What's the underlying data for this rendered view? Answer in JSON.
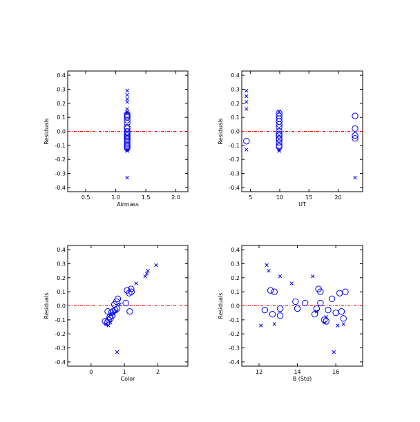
{
  "colors": {
    "marker": "#0000ff",
    "zero_line": "#ff0000",
    "axis": "#000000"
  },
  "chart_data": [
    {
      "type": "scatter",
      "xlabel": "Airmass",
      "ylabel": "Residuals",
      "xlim": [
        0.2,
        2.2
      ],
      "ylim": [
        -0.43,
        0.43
      ],
      "xticks": [
        0.5,
        1.0,
        1.5,
        2.0
      ],
      "xtick_labels": [
        "0.5",
        "1.0",
        "1.5",
        "2.0"
      ],
      "yticks": [
        -0.4,
        -0.3,
        -0.2,
        -0.1,
        0.0,
        0.1,
        0.2,
        0.3,
        0.4
      ],
      "ytick_labels": [
        "-0.4",
        "-0.3",
        "-0.2",
        "-0.1",
        "0.0",
        "0.1",
        "0.2",
        "0.3",
        "0.4"
      ],
      "zero_line": true,
      "circles": [
        [
          1.19,
          0.12
        ],
        [
          1.19,
          0.1
        ],
        [
          1.19,
          0.08
        ],
        [
          1.19,
          0.06
        ],
        [
          1.19,
          0.03
        ],
        [
          1.19,
          0.02
        ],
        [
          1.19,
          0.0
        ],
        [
          1.19,
          -0.02
        ],
        [
          1.19,
          -0.03
        ],
        [
          1.19,
          -0.04
        ],
        [
          1.19,
          -0.05
        ],
        [
          1.19,
          -0.06
        ],
        [
          1.19,
          -0.07
        ],
        [
          1.19,
          -0.09
        ],
        [
          1.19,
          -0.1
        ],
        [
          1.19,
          -0.11
        ],
        [
          1.19,
          -0.12
        ],
        [
          1.19,
          0.11
        ],
        [
          1.19,
          -0.01
        ]
      ],
      "crosses": [
        [
          1.19,
          0.29
        ],
        [
          1.19,
          0.26
        ],
        [
          1.19,
          0.23
        ],
        [
          1.19,
          0.21
        ],
        [
          1.19,
          0.16
        ],
        [
          1.19,
          0.14
        ],
        [
          1.19,
          0.13
        ],
        [
          1.19,
          -0.13
        ],
        [
          1.19,
          -0.14
        ],
        [
          1.19,
          -0.33
        ]
      ]
    },
    {
      "type": "scatter",
      "xlabel": "UT",
      "ylabel": "Residuals",
      "xlim": [
        3.5,
        24.2
      ],
      "ylim": [
        -0.43,
        0.43
      ],
      "xticks": [
        5,
        10,
        15,
        20
      ],
      "xtick_labels": [
        "5",
        "10",
        "15",
        "20"
      ],
      "yticks": [
        -0.4,
        -0.3,
        -0.2,
        -0.1,
        0.0,
        0.1,
        0.2,
        0.3,
        0.4
      ],
      "ytick_labels": [
        "-0.4",
        "-0.3",
        "-0.2",
        "-0.1",
        "0.0",
        "0.1",
        "0.2",
        "0.3",
        "0.4"
      ],
      "zero_line": true,
      "circles": [
        [
          4.3,
          -0.07
        ],
        [
          9.9,
          0.13
        ],
        [
          9.9,
          0.11
        ],
        [
          9.9,
          0.09
        ],
        [
          9.9,
          0.07
        ],
        [
          9.9,
          0.05
        ],
        [
          9.9,
          0.03
        ],
        [
          9.9,
          0.0
        ],
        [
          9.9,
          -0.02
        ],
        [
          9.9,
          -0.03
        ],
        [
          9.9,
          -0.05
        ],
        [
          9.9,
          -0.06
        ],
        [
          9.9,
          -0.08
        ],
        [
          9.9,
          -0.1
        ],
        [
          9.9,
          -0.11
        ],
        [
          22.9,
          0.11
        ],
        [
          22.9,
          0.02
        ],
        [
          22.9,
          -0.03
        ],
        [
          22.9,
          -0.05
        ]
      ],
      "crosses": [
        [
          4.3,
          0.29
        ],
        [
          4.3,
          0.25
        ],
        [
          4.3,
          0.21
        ],
        [
          4.3,
          0.16
        ],
        [
          4.3,
          -0.13
        ],
        [
          9.9,
          -0.13
        ],
        [
          9.9,
          -0.14
        ],
        [
          9.9,
          0.14
        ],
        [
          22.9,
          -0.33
        ]
      ]
    },
    {
      "type": "scatter",
      "xlabel": "Color",
      "ylabel": "Residuals",
      "xlim": [
        -0.7,
        2.9
      ],
      "ylim": [
        -0.43,
        0.43
      ],
      "xticks": [
        0,
        1,
        2
      ],
      "xtick_labels": [
        "0",
        "1",
        "2"
      ],
      "yticks": [
        -0.4,
        -0.3,
        -0.2,
        -0.1,
        0.0,
        0.1,
        0.2,
        0.3,
        0.4
      ],
      "ytick_labels": [
        "-0.4",
        "-0.3",
        "-0.2",
        "-0.1",
        "0.0",
        "0.1",
        "0.2",
        "0.3",
        "0.4"
      ],
      "zero_line": true,
      "circles": [
        [
          0.42,
          -0.11
        ],
        [
          0.48,
          -0.12
        ],
        [
          0.52,
          -0.1
        ],
        [
          0.5,
          -0.04
        ],
        [
          0.56,
          -0.08
        ],
        [
          0.6,
          -0.05
        ],
        [
          0.63,
          -0.07
        ],
        [
          0.66,
          -0.04
        ],
        [
          0.7,
          0.01
        ],
        [
          0.76,
          0.03
        ],
        [
          0.8,
          0.05
        ],
        [
          0.78,
          -0.02
        ],
        [
          1.04,
          0.02
        ],
        [
          1.08,
          0.11
        ],
        [
          1.14,
          0.09
        ],
        [
          1.16,
          -0.04
        ],
        [
          1.2,
          0.12
        ],
        [
          1.21,
          0.1
        ],
        [
          0.72,
          -0.03
        ],
        [
          0.58,
          -0.09
        ]
      ],
      "crosses": [
        [
          0.45,
          -0.13
        ],
        [
          0.52,
          -0.14
        ],
        [
          0.58,
          -0.12
        ],
        [
          0.6,
          -0.06
        ],
        [
          0.68,
          -0.06
        ],
        [
          0.74,
          -0.04
        ],
        [
          0.86,
          0.01
        ],
        [
          1.35,
          0.16
        ],
        [
          1.62,
          0.21
        ],
        [
          1.7,
          0.25
        ],
        [
          1.95,
          0.29
        ],
        [
          1.67,
          0.23
        ],
        [
          0.78,
          -0.33
        ]
      ]
    },
    {
      "type": "scatter",
      "xlabel": "B (Std)",
      "ylabel": "Residuals",
      "xlim": [
        11.1,
        17.4
      ],
      "ylim": [
        -0.43,
        0.43
      ],
      "xticks": [
        12,
        14,
        16
      ],
      "xtick_labels": [
        "12",
        "14",
        "16"
      ],
      "yticks": [
        -0.4,
        -0.3,
        -0.2,
        -0.1,
        0.0,
        0.1,
        0.2,
        0.3,
        0.4
      ],
      "ytick_labels": [
        "-0.4",
        "-0.3",
        "-0.2",
        "-0.1",
        "0.0",
        "0.1",
        "0.2",
        "0.3",
        "0.4"
      ],
      "zero_line": true,
      "circles": [
        [
          12.3,
          -0.03
        ],
        [
          12.6,
          0.11
        ],
        [
          12.8,
          0.1
        ],
        [
          12.7,
          -0.06
        ],
        [
          13.1,
          -0.02
        ],
        [
          13.1,
          -0.07
        ],
        [
          13.9,
          0.03
        ],
        [
          14.0,
          -0.02
        ],
        [
          14.4,
          0.02
        ],
        [
          14.9,
          -0.06
        ],
        [
          15.0,
          -0.02
        ],
        [
          15.1,
          0.12
        ],
        [
          15.2,
          0.1
        ],
        [
          15.2,
          0.02
        ],
        [
          15.4,
          -0.1
        ],
        [
          15.5,
          -0.11
        ],
        [
          15.6,
          -0.03
        ],
        [
          15.8,
          0.05
        ],
        [
          16.0,
          -0.05
        ],
        [
          16.2,
          0.09
        ],
        [
          16.3,
          -0.04
        ],
        [
          16.5,
          0.1
        ],
        [
          16.4,
          -0.09
        ]
      ],
      "crosses": [
        [
          12.1,
          -0.14
        ],
        [
          12.4,
          0.29
        ],
        [
          12.5,
          0.25
        ],
        [
          12.8,
          -0.13
        ],
        [
          13.1,
          0.21
        ],
        [
          13.7,
          0.16
        ],
        [
          14.8,
          0.21
        ],
        [
          15.0,
          -0.04
        ],
        [
          15.4,
          -0.12
        ],
        [
          15.5,
          -0.08
        ],
        [
          15.9,
          -0.33
        ],
        [
          16.1,
          -0.14
        ],
        [
          16.4,
          -0.13
        ]
      ]
    }
  ]
}
